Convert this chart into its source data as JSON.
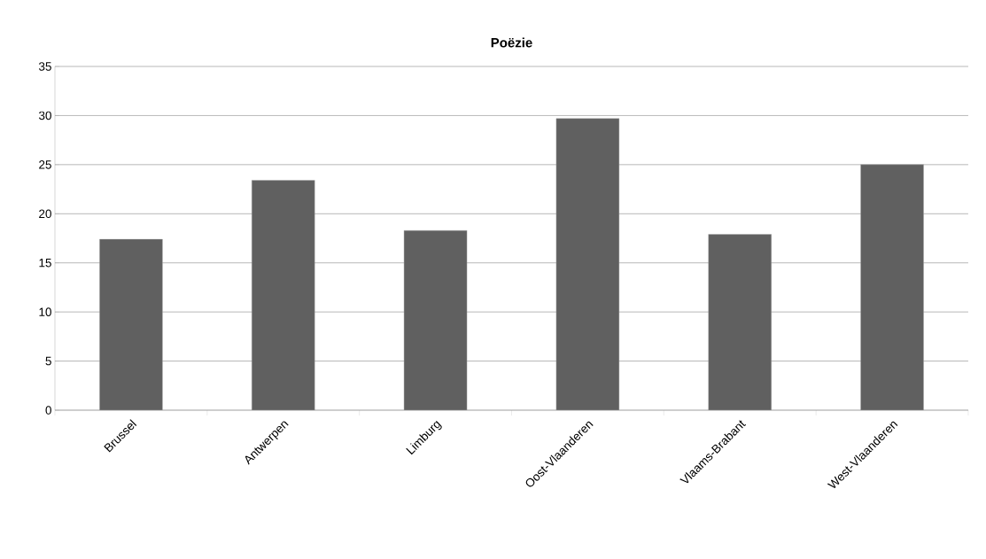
{
  "chart_data": {
    "type": "bar",
    "title": "Poëzie",
    "categories": [
      "Brussel",
      "Antwerpen",
      "Limburg",
      "Oost-Vlaanderen",
      "Vlaams-Brabant",
      "West-Vlaanderen"
    ],
    "values": [
      17.4,
      23.4,
      18.3,
      29.7,
      17.9,
      25.0
    ],
    "color": "#606060",
    "ylim": [
      0,
      35
    ],
    "yticks": [
      0,
      5,
      10,
      15,
      20,
      25,
      30,
      35
    ],
    "grid": "y"
  }
}
